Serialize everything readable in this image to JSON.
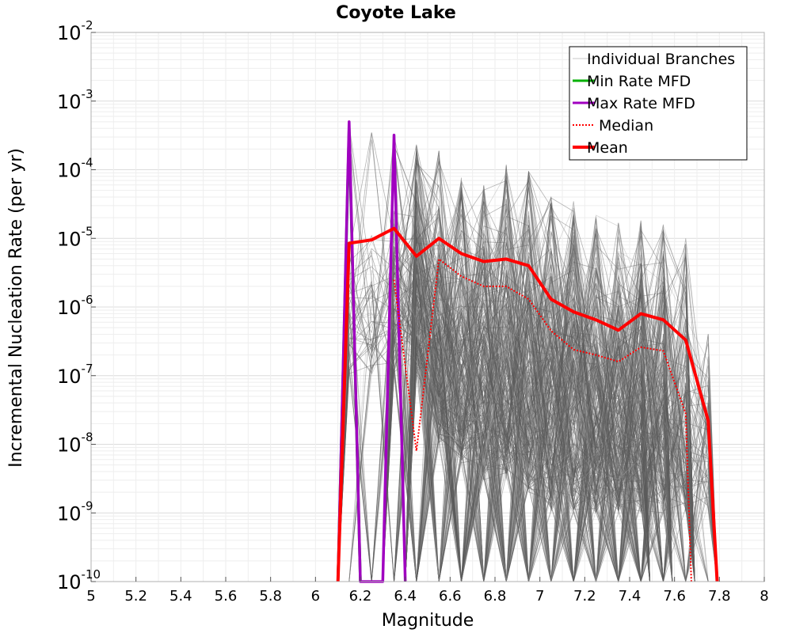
{
  "chart_data": {
    "type": "line",
    "title": "Coyote Lake",
    "xlabel": "Magnitude",
    "ylabel": "Incremental Nucleation Rate (per yr)",
    "xlim": [
      5,
      8
    ],
    "ylim_log10": [
      -10,
      -2
    ],
    "xscale": "linear",
    "yscale": "log",
    "grid": true,
    "legend_position": "top-right",
    "x_ticks": [
      "5",
      "5.2",
      "5.4",
      "5.6",
      "5.8",
      "6",
      "6.2",
      "6.4",
      "6.6",
      "6.8",
      "7",
      "7.2",
      "7.4",
      "7.6",
      "7.8",
      "8"
    ],
    "x_tick_values": [
      5,
      5.2,
      5.4,
      5.6,
      5.8,
      6,
      6.2,
      6.4,
      6.6,
      6.8,
      7,
      7.2,
      7.4,
      7.6,
      7.8,
      8
    ],
    "y_ticks": [
      {
        "base": "10",
        "exp": "-2",
        "value": 0.01
      },
      {
        "base": "10",
        "exp": "-3",
        "value": 0.001
      },
      {
        "base": "10",
        "exp": "-4",
        "value": 0.0001
      },
      {
        "base": "10",
        "exp": "-5",
        "value": 1e-05
      },
      {
        "base": "10",
        "exp": "-6",
        "value": 1e-06
      },
      {
        "base": "10",
        "exp": "-7",
        "value": 1e-07
      },
      {
        "base": "10",
        "exp": "-8",
        "value": 1e-08
      },
      {
        "base": "10",
        "exp": "-9",
        "value": 1e-09
      },
      {
        "base": "10",
        "exp": "-10",
        "value": 1e-10
      }
    ],
    "legend": [
      {
        "label": "Individual Branches",
        "color": "#c8c8c8",
        "style": "solid-thin"
      },
      {
        "label": "Min Rate MFD",
        "color": "#00b000",
        "style": "solid"
      },
      {
        "label": "Max Rate MFD",
        "color": "#a000c0",
        "style": "solid"
      },
      {
        "label": "Median",
        "color": "#ff0000",
        "style": "dotted"
      },
      {
        "label": "Mean",
        "color": "#ff0000",
        "style": "solid-thick"
      }
    ],
    "series": [
      {
        "name": "Mean",
        "color": "#ff0000",
        "x": [
          6.1,
          6.15,
          6.25,
          6.35,
          6.45,
          6.55,
          6.65,
          6.75,
          6.85,
          6.95,
          7.05,
          7.15,
          7.25,
          7.35,
          7.45,
          7.55,
          7.65,
          7.75,
          7.79
        ],
        "y": [
          1e-10,
          8.5e-06,
          9.5e-06,
          1.4e-05,
          5.5e-06,
          1e-05,
          6e-06,
          4.6e-06,
          5e-06,
          4e-06,
          1.3e-06,
          8.5e-07,
          6.5e-07,
          4.6e-07,
          8e-07,
          6.5e-07,
          3.3e-07,
          2.2e-08,
          1e-10
        ]
      },
      {
        "name": "Median",
        "color": "#ff0000",
        "x": [
          6.35,
          6.45,
          6.55,
          6.65,
          6.75,
          6.85,
          6.95,
          7.05,
          7.15,
          7.25,
          7.35,
          7.45,
          7.55,
          7.65,
          7.675
        ],
        "y": [
          2.5e-06,
          8e-09,
          5e-06,
          2.8e-06,
          2e-06,
          2e-06,
          1.3e-06,
          4.5e-07,
          2.4e-07,
          2e-07,
          1.6e-07,
          2.6e-07,
          2.3e-07,
          2.8e-08,
          1e-10
        ]
      },
      {
        "name": "Max Rate MFD",
        "color": "#a000c0",
        "x": [
          6.1,
          6.15,
          6.2,
          6.3,
          6.35,
          6.4
        ],
        "y": [
          1e-10,
          0.0005,
          1e-10,
          1e-10,
          0.00032,
          1e-10
        ]
      },
      {
        "name": "Min Rate MFD",
        "color": "#00b000",
        "x": [
          6.1,
          6.15,
          6.2
        ],
        "y": [
          1e-10,
          0.0004,
          1e-10
        ]
      }
    ],
    "branch_envelope": {
      "name": "Individual Branches",
      "color": "#595959",
      "bins": [
        6.15,
        6.25,
        6.35,
        6.45,
        6.55,
        6.65,
        6.75,
        6.85,
        6.95,
        7.05,
        7.15,
        7.25,
        7.35,
        7.45,
        7.55,
        7.65,
        7.75
      ],
      "max": [
        0.0005,
        0.00035,
        0.00032,
        0.00024,
        0.00019,
        8e-05,
        6e-05,
        0.00012,
        0.0001,
        4e-05,
        3.5e-05,
        2.2e-05,
        1.9e-05,
        1.9e-05,
        1.6e-05,
        1e-05,
        8e-07
      ],
      "upper": [
        1e-05,
        1.5e-05,
        3e-05,
        9e-05,
        8e-05,
        6.5e-05,
        5e-05,
        5.5e-05,
        4.5e-05,
        3e-05,
        2e-05,
        1.2e-05,
        8e-06,
        1.2e-05,
        1e-05,
        4e-06,
        5e-07
      ],
      "lower": [
        1e-07,
        1e-07,
        1e-07,
        1e-07,
        1e-08,
        5e-09,
        3e-09,
        3e-09,
        2e-09,
        1e-09,
        1e-09,
        1e-09,
        1e-09,
        1e-09,
        1e-09,
        1e-09,
        1e-09
      ]
    }
  }
}
